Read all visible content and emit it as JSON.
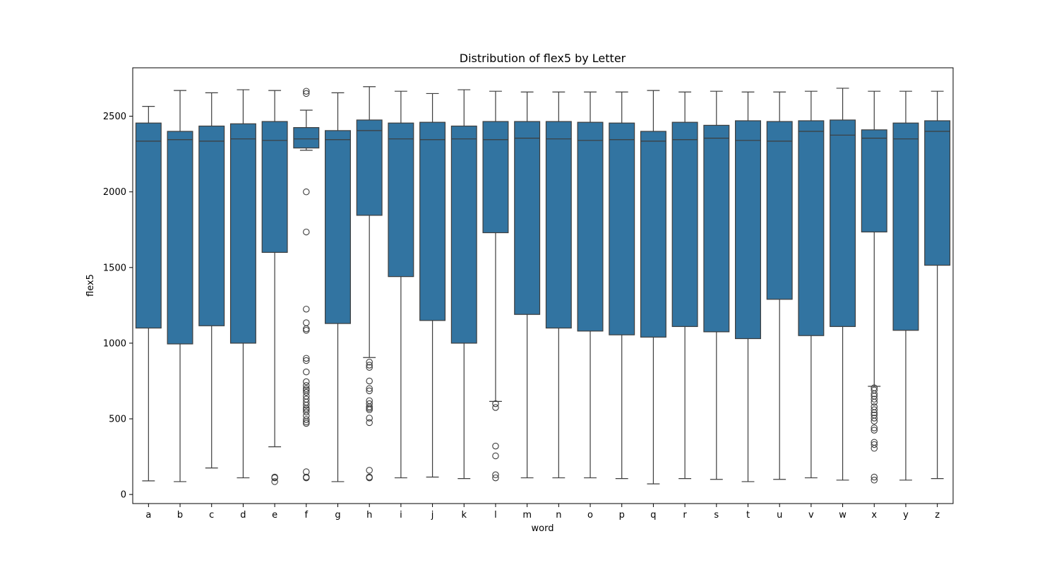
{
  "chart_data": {
    "type": "box",
    "title": "Distribution of flex5 by Letter",
    "xlabel": "word",
    "ylabel": "flex5",
    "ylim": [
      -60,
      2820
    ],
    "yticks": [
      0,
      500,
      1000,
      1500,
      2000,
      2500
    ],
    "grid": false,
    "legend": "none",
    "box_color": "#3274a1",
    "line_color": "#3d3d3d",
    "categories": [
      "a",
      "b",
      "c",
      "d",
      "e",
      "f",
      "g",
      "h",
      "i",
      "j",
      "k",
      "l",
      "m",
      "n",
      "o",
      "p",
      "q",
      "r",
      "s",
      "t",
      "u",
      "v",
      "w",
      "x",
      "y",
      "z"
    ],
    "boxes": [
      {
        "category": "a",
        "whisker_low": 90,
        "q1": 1100,
        "median": 2335,
        "q3": 2455,
        "whisker_high": 2565,
        "outliers": []
      },
      {
        "category": "b",
        "whisker_low": 85,
        "q1": 995,
        "median": 2345,
        "q3": 2400,
        "whisker_high": 2670,
        "outliers": []
      },
      {
        "category": "c",
        "whisker_low": 175,
        "q1": 1115,
        "median": 2335,
        "q3": 2435,
        "whisker_high": 2655,
        "outliers": []
      },
      {
        "category": "d",
        "whisker_low": 110,
        "q1": 1000,
        "median": 2350,
        "q3": 2450,
        "whisker_high": 2675,
        "outliers": []
      },
      {
        "category": "e",
        "whisker_low": 315,
        "q1": 1600,
        "median": 2340,
        "q3": 2465,
        "whisker_high": 2670,
        "outliers": [
          110,
          115,
          85
        ]
      },
      {
        "category": "f",
        "whisker_low": 2275,
        "q1": 2290,
        "median": 2350,
        "q3": 2425,
        "whisker_high": 2540,
        "outliers": [
          2665,
          2650,
          2000,
          1735,
          1225,
          1135,
          1095,
          1085,
          900,
          885,
          810,
          745,
          720,
          700,
          690,
          675,
          650,
          630,
          610,
          590,
          570,
          560,
          545,
          520,
          495,
          480,
          470,
          150,
          115,
          110
        ]
      },
      {
        "category": "g",
        "whisker_low": 85,
        "q1": 1130,
        "median": 2345,
        "q3": 2405,
        "whisker_high": 2655,
        "outliers": []
      },
      {
        "category": "h",
        "whisker_low": 905,
        "q1": 1845,
        "median": 2405,
        "q3": 2475,
        "whisker_high": 2695,
        "outliers": [
          875,
          855,
          840,
          750,
          700,
          685,
          620,
          600,
          580,
          570,
          560,
          505,
          475,
          160,
          115,
          110
        ]
      },
      {
        "category": "i",
        "whisker_low": 110,
        "q1": 1440,
        "median": 2350,
        "q3": 2455,
        "whisker_high": 2665,
        "outliers": []
      },
      {
        "category": "j",
        "whisker_low": 115,
        "q1": 1150,
        "median": 2345,
        "q3": 2460,
        "whisker_high": 2650,
        "outliers": []
      },
      {
        "category": "k",
        "whisker_low": 105,
        "q1": 1000,
        "median": 2350,
        "q3": 2435,
        "whisker_high": 2675,
        "outliers": []
      },
      {
        "category": "l",
        "whisker_low": 615,
        "q1": 1730,
        "median": 2345,
        "q3": 2465,
        "whisker_high": 2665,
        "outliers": [
          600,
          575,
          320,
          255,
          130,
          110
        ]
      },
      {
        "category": "m",
        "whisker_low": 110,
        "q1": 1190,
        "median": 2355,
        "q3": 2465,
        "whisker_high": 2660,
        "outliers": []
      },
      {
        "category": "n",
        "whisker_low": 110,
        "q1": 1100,
        "median": 2350,
        "q3": 2465,
        "whisker_high": 2660,
        "outliers": []
      },
      {
        "category": "o",
        "whisker_low": 110,
        "q1": 1080,
        "median": 2340,
        "q3": 2460,
        "whisker_high": 2660,
        "outliers": []
      },
      {
        "category": "p",
        "whisker_low": 105,
        "q1": 1055,
        "median": 2345,
        "q3": 2455,
        "whisker_high": 2660,
        "outliers": []
      },
      {
        "category": "q",
        "whisker_low": 70,
        "q1": 1040,
        "median": 2335,
        "q3": 2400,
        "whisker_high": 2670,
        "outliers": []
      },
      {
        "category": "r",
        "whisker_low": 105,
        "q1": 1110,
        "median": 2345,
        "q3": 2460,
        "whisker_high": 2660,
        "outliers": []
      },
      {
        "category": "s",
        "whisker_low": 100,
        "q1": 1075,
        "median": 2355,
        "q3": 2440,
        "whisker_high": 2665,
        "outliers": []
      },
      {
        "category": "t",
        "whisker_low": 85,
        "q1": 1030,
        "median": 2340,
        "q3": 2470,
        "whisker_high": 2660,
        "outliers": []
      },
      {
        "category": "u",
        "whisker_low": 100,
        "q1": 1290,
        "median": 2335,
        "q3": 2465,
        "whisker_high": 2660,
        "outliers": []
      },
      {
        "category": "v",
        "whisker_low": 110,
        "q1": 1050,
        "median": 2400,
        "q3": 2470,
        "whisker_high": 2665,
        "outliers": []
      },
      {
        "category": "w",
        "whisker_low": 95,
        "q1": 1110,
        "median": 2375,
        "q3": 2475,
        "whisker_high": 2685,
        "outliers": []
      },
      {
        "category": "x",
        "whisker_low": 715,
        "q1": 1735,
        "median": 2355,
        "q3": 2410,
        "whisker_high": 2665,
        "outliers": [
          705,
          690,
          665,
          650,
          630,
          610,
          580,
          560,
          540,
          525,
          505,
          485,
          440,
          425,
          345,
          330,
          305,
          115,
          95
        ]
      },
      {
        "category": "y",
        "whisker_low": 95,
        "q1": 1085,
        "median": 2350,
        "q3": 2455,
        "whisker_high": 2665,
        "outliers": []
      },
      {
        "category": "z",
        "whisker_low": 105,
        "q1": 1515,
        "median": 2400,
        "q3": 2470,
        "whisker_high": 2665,
        "outliers": []
      }
    ]
  }
}
